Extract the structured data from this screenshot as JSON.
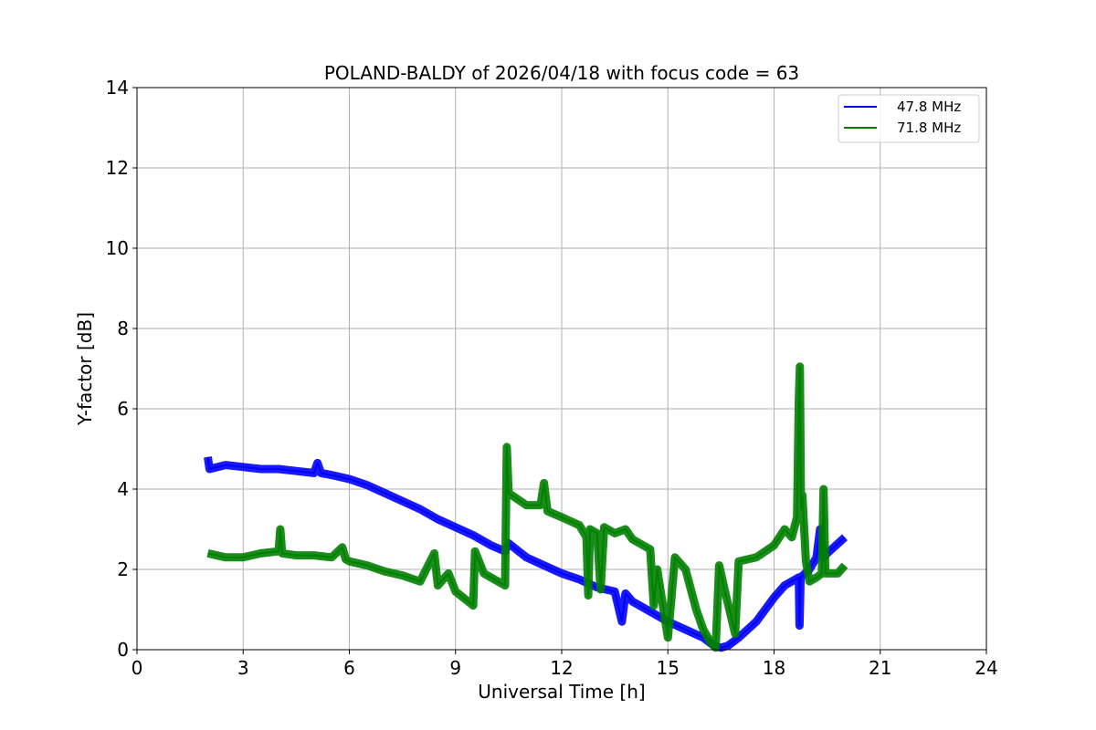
{
  "chart_data": {
    "type": "line",
    "title": "POLAND-BALDY of 2026/04/18 with focus code = 63",
    "xlabel": "Universal Time [h]",
    "ylabel": "Y-factor [dB]",
    "xlim": [
      0,
      24
    ],
    "ylim": [
      0,
      14
    ],
    "xticks": [
      0,
      3,
      6,
      9,
      12,
      15,
      18,
      21,
      24
    ],
    "yticks": [
      0,
      2,
      4,
      6,
      8,
      10,
      12,
      14
    ],
    "xtick_labels": [
      "0",
      "3",
      "6",
      "9",
      "12",
      "15",
      "18",
      "21",
      "24"
    ],
    "ytick_labels": [
      "0",
      "2",
      "4",
      "6",
      "8",
      "10",
      "12",
      "14"
    ],
    "grid": true,
    "legend_position": "top-right",
    "series": [
      {
        "name": "47.8 MHz",
        "color": "#0000ff",
        "points": [
          [
            2.0,
            4.8
          ],
          [
            2.05,
            4.5
          ],
          [
            2.5,
            4.6
          ],
          [
            3.0,
            4.55
          ],
          [
            3.5,
            4.5
          ],
          [
            4.0,
            4.5
          ],
          [
            4.5,
            4.45
          ],
          [
            5.0,
            4.4
          ],
          [
            5.1,
            4.65
          ],
          [
            5.2,
            4.4
          ],
          [
            5.5,
            4.35
          ],
          [
            6.0,
            4.25
          ],
          [
            6.5,
            4.1
          ],
          [
            7.0,
            3.9
          ],
          [
            7.5,
            3.7
          ],
          [
            8.0,
            3.5
          ],
          [
            8.5,
            3.25
          ],
          [
            9.0,
            3.05
          ],
          [
            9.5,
            2.85
          ],
          [
            10.0,
            2.6
          ],
          [
            10.4,
            2.45
          ],
          [
            10.5,
            2.65
          ],
          [
            11.0,
            2.3
          ],
          [
            11.5,
            2.1
          ],
          [
            12.0,
            1.9
          ],
          [
            12.5,
            1.75
          ],
          [
            13.0,
            1.55
          ],
          [
            13.5,
            1.45
          ],
          [
            13.7,
            0.7
          ],
          [
            13.8,
            1.4
          ],
          [
            14.0,
            1.2
          ],
          [
            14.5,
            0.95
          ],
          [
            15.0,
            0.7
          ],
          [
            15.5,
            0.5
          ],
          [
            16.0,
            0.3
          ],
          [
            16.3,
            0.1
          ],
          [
            16.5,
            0.05
          ],
          [
            16.7,
            0.1
          ],
          [
            17.0,
            0.3
          ],
          [
            17.5,
            0.7
          ],
          [
            18.0,
            1.3
          ],
          [
            18.3,
            1.6
          ],
          [
            18.7,
            1.8
          ],
          [
            18.72,
            0.6
          ],
          [
            18.75,
            1.8
          ],
          [
            19.0,
            2.0
          ],
          [
            19.2,
            2.3
          ],
          [
            19.3,
            3.0
          ],
          [
            19.4,
            2.3
          ],
          [
            19.5,
            2.4
          ],
          [
            20.0,
            2.8
          ]
        ]
      },
      {
        "name": "71.8 MHz",
        "color": "#008000",
        "points": [
          [
            2.0,
            2.4
          ],
          [
            2.5,
            2.3
          ],
          [
            3.0,
            2.3
          ],
          [
            3.5,
            2.4
          ],
          [
            4.0,
            2.45
          ],
          [
            4.05,
            3.0
          ],
          [
            4.1,
            2.4
          ],
          [
            4.5,
            2.35
          ],
          [
            5.0,
            2.35
          ],
          [
            5.5,
            2.3
          ],
          [
            5.8,
            2.55
          ],
          [
            5.9,
            2.25
          ],
          [
            6.0,
            2.2
          ],
          [
            6.5,
            2.1
          ],
          [
            7.0,
            1.95
          ],
          [
            7.5,
            1.85
          ],
          [
            8.0,
            1.7
          ],
          [
            8.4,
            2.4
          ],
          [
            8.5,
            1.6
          ],
          [
            8.8,
            1.9
          ],
          [
            9.0,
            1.45
          ],
          [
            9.5,
            1.1
          ],
          [
            9.55,
            2.45
          ],
          [
            9.8,
            1.9
          ],
          [
            10.0,
            1.8
          ],
          [
            10.4,
            1.6
          ],
          [
            10.45,
            5.05
          ],
          [
            10.5,
            3.9
          ],
          [
            11.0,
            3.6
          ],
          [
            11.4,
            3.6
          ],
          [
            11.5,
            4.15
          ],
          [
            11.6,
            3.45
          ],
          [
            12.0,
            3.3
          ],
          [
            12.5,
            3.1
          ],
          [
            12.7,
            2.8
          ],
          [
            12.75,
            1.35
          ],
          [
            12.8,
            3.0
          ],
          [
            13.0,
            2.9
          ],
          [
            13.1,
            1.5
          ],
          [
            13.2,
            3.05
          ],
          [
            13.5,
            2.9
          ],
          [
            13.8,
            3.0
          ],
          [
            14.0,
            2.75
          ],
          [
            14.5,
            2.5
          ],
          [
            14.6,
            1.1
          ],
          [
            14.7,
            2.0
          ],
          [
            15.0,
            0.3
          ],
          [
            15.2,
            2.3
          ],
          [
            15.5,
            2.0
          ],
          [
            15.8,
            1.0
          ],
          [
            16.0,
            0.5
          ],
          [
            16.2,
            0.2
          ],
          [
            16.35,
            0.05
          ],
          [
            16.45,
            2.1
          ],
          [
            16.6,
            1.5
          ],
          [
            16.9,
            0.4
          ],
          [
            17.0,
            2.2
          ],
          [
            17.5,
            2.3
          ],
          [
            18.0,
            2.6
          ],
          [
            18.3,
            3.0
          ],
          [
            18.5,
            2.8
          ],
          [
            18.65,
            3.3
          ],
          [
            18.7,
            6.2
          ],
          [
            18.73,
            7.05
          ],
          [
            18.76,
            3.5
          ],
          [
            18.8,
            3.85
          ],
          [
            18.9,
            2.2
          ],
          [
            19.0,
            1.7
          ],
          [
            19.2,
            1.8
          ],
          [
            19.35,
            1.9
          ],
          [
            19.4,
            4.0
          ],
          [
            19.45,
            1.9
          ],
          [
            19.8,
            1.9
          ],
          [
            20.0,
            2.1
          ]
        ]
      }
    ]
  }
}
